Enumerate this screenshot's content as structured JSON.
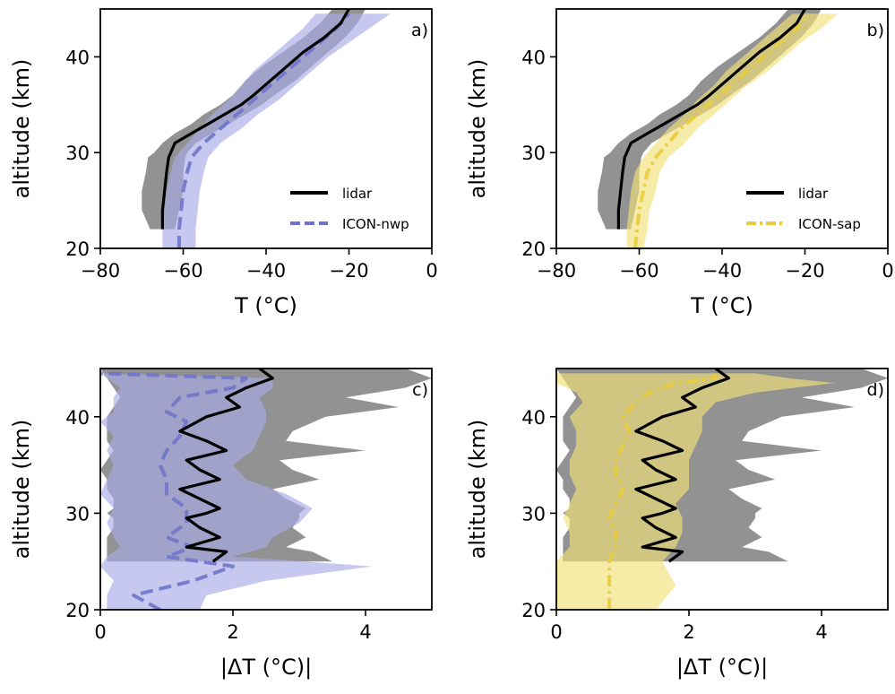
{
  "chart_data": [
    {
      "id": "a",
      "type": "line",
      "panel_label": "a)",
      "xlabel": "T (°C)",
      "ylabel": "altitude (km)",
      "xlim": [
        -80,
        0
      ],
      "ylim": [
        20,
        45
      ],
      "xticks": [
        -80,
        -60,
        -40,
        -20,
        0
      ],
      "xtick_labels": [
        "−80",
        "−60",
        "−40",
        "−20",
        "0"
      ],
      "yticks": [
        20,
        30,
        40
      ],
      "ytick_labels": [
        "20",
        "30",
        "40"
      ],
      "legend": "lower-right",
      "series": [
        {
          "name": "lidar",
          "color": "#000000",
          "band_color": "#7f7f7f",
          "style": "solid",
          "x": [
            -65,
            -65,
            -64.5,
            -64,
            -63.5,
            -63,
            -62,
            -58,
            -54,
            -50,
            -46,
            -43,
            -39,
            -35,
            -31,
            -26,
            -22,
            -20
          ],
          "y": [
            22,
            24,
            26,
            28,
            29.5,
            30,
            31,
            32,
            33,
            34,
            35,
            36,
            37.5,
            39,
            40.5,
            42,
            43.5,
            45
          ],
          "band_low": [
            -68,
            -70,
            -70,
            -69,
            -68.5,
            -67,
            -65,
            -62,
            -58,
            -55,
            -51,
            -48,
            -45,
            -41,
            -36,
            -31,
            -27,
            -24
          ],
          "band_high": [
            -62,
            -61,
            -60,
            -60,
            -59.5,
            -59,
            -57,
            -53,
            -49,
            -45,
            -41,
            -38,
            -33,
            -29,
            -25,
            -21,
            -18,
            -16
          ]
        },
        {
          "name": "ICON-nwp",
          "color": "#7074c9",
          "band_color": "#a7aae6",
          "style": "dashed",
          "x": [
            -61,
            -61,
            -60.5,
            -60,
            -59,
            -58,
            -55,
            -51,
            -47,
            -43,
            -39,
            -35,
            -31,
            -27,
            -23,
            -20
          ],
          "y": [
            20,
            22,
            24,
            26,
            28,
            29.5,
            31,
            32.5,
            34,
            35.5,
            37,
            38.5,
            40,
            41.5,
            43,
            44.5
          ],
          "band_low": [
            -65,
            -65,
            -64.5,
            -64,
            -63,
            -62,
            -59,
            -56,
            -53,
            -49,
            -46,
            -43,
            -39,
            -35,
            -31,
            -28
          ],
          "band_high": [
            -57,
            -57,
            -56.5,
            -56,
            -55,
            -54,
            -51,
            -46,
            -42,
            -37,
            -33,
            -29,
            -25,
            -20,
            -15,
            -10
          ]
        }
      ]
    },
    {
      "id": "b",
      "type": "line",
      "panel_label": "b)",
      "xlabel": "T (°C)",
      "ylabel": "altitude (km)",
      "xlim": [
        -80,
        0
      ],
      "ylim": [
        20,
        45
      ],
      "xticks": [
        -80,
        -60,
        -40,
        -20,
        0
      ],
      "xtick_labels": [
        "−80",
        "−60",
        "−40",
        "−20",
        "0"
      ],
      "yticks": [
        20,
        30,
        40
      ],
      "ytick_labels": [
        "20",
        "30",
        "40"
      ],
      "legend": "lower-right",
      "series": [
        {
          "name": "lidar",
          "color": "#000000",
          "band_color": "#7f7f7f",
          "style": "solid",
          "x": [
            -65,
            -65,
            -64.5,
            -64,
            -63.5,
            -63,
            -62,
            -58,
            -54,
            -50,
            -46,
            -43,
            -39,
            -35,
            -31,
            -26,
            -22,
            -20
          ],
          "y": [
            22,
            24,
            26,
            28,
            29.5,
            30,
            31,
            32,
            33,
            34,
            35,
            36,
            37.5,
            39,
            40.5,
            42,
            43.5,
            45
          ],
          "band_low": [
            -68,
            -70,
            -70,
            -69,
            -68.5,
            -67,
            -65,
            -62,
            -58,
            -55,
            -51,
            -48,
            -45,
            -41,
            -36,
            -31,
            -27,
            -24
          ],
          "band_high": [
            -62,
            -61,
            -60,
            -60,
            -59.5,
            -59,
            -57,
            -53,
            -49,
            -45,
            -41,
            -38,
            -33,
            -29,
            -25,
            -21,
            -18,
            -16
          ]
        },
        {
          "name": "ICON-sap",
          "color": "#e8cc3c",
          "band_color": "#f2e07a",
          "style": "dashdot",
          "x": [
            -61,
            -60.5,
            -60,
            -59,
            -58,
            -56,
            -53,
            -50,
            -46,
            -42,
            -38,
            -34,
            -30,
            -26,
            -22,
            -19
          ],
          "y": [
            20,
            22,
            24,
            26,
            28,
            29.5,
            31,
            32.5,
            34,
            35.5,
            37,
            38.5,
            40,
            41.5,
            43,
            44.5
          ],
          "band_low": [
            -63,
            -63,
            -62.5,
            -62,
            -61,
            -59,
            -56,
            -53,
            -49,
            -46,
            -42,
            -39,
            -35,
            -31,
            -27,
            -23
          ],
          "band_high": [
            -59,
            -58,
            -57.5,
            -56,
            -55,
            -53,
            -49,
            -46,
            -42,
            -38,
            -34,
            -29,
            -25,
            -21,
            -16,
            -12
          ]
        }
      ]
    },
    {
      "id": "c",
      "type": "line",
      "panel_label": "c)",
      "xlabel": "|ΔT (°C)|",
      "ylabel": "altitude (km)",
      "xlim": [
        0,
        5
      ],
      "ylim": [
        20,
        45
      ],
      "xticks": [
        0,
        2,
        4
      ],
      "xtick_labels": [
        "0",
        "2",
        "4"
      ],
      "yticks": [
        20,
        30,
        40
      ],
      "ytick_labels": [
        "20",
        "30",
        "40"
      ],
      "series": [
        {
          "name": "lidar",
          "color": "#000000",
          "band_color": "#7f7f7f",
          "style": "solid",
          "x": [
            1.7,
            1.9,
            1.3,
            1.8,
            1.5,
            1.3,
            1.6,
            1.8,
            1.5,
            1.2,
            1.8,
            1.5,
            1.3,
            1.9,
            1.6,
            1.2,
            1.6,
            2.1,
            1.9,
            2.2,
            2.6,
            2.4
          ],
          "y": [
            25,
            26,
            26.5,
            27.5,
            28.5,
            29.5,
            30,
            30.5,
            31.5,
            32.5,
            33.5,
            34.5,
            35.5,
            36.5,
            37.5,
            38.5,
            40,
            41,
            42,
            43,
            44,
            45
          ],
          "band_low": [
            0.1,
            0.1,
            0.1,
            0.1,
            0.2,
            0.2,
            0.1,
            0.2,
            0.2,
            0.1,
            0.1,
            0.0,
            0.1,
            0.2,
            0.1,
            0.1,
            0.1,
            0.2,
            0.3,
            0.2,
            0.1,
            0.0
          ],
          "band_high": [
            3.5,
            3.2,
            2.8,
            3.1,
            2.9,
            3.0,
            3.0,
            3.1,
            2.8,
            2.6,
            3.3,
            2.9,
            2.7,
            4.0,
            2.8,
            2.9,
            3.4,
            4.5,
            3.7,
            4.6,
            5.0,
            4.6
          ]
        },
        {
          "name": "ICON-nwp",
          "color": "#7074c9",
          "band_color": "#a7aae6",
          "style": "dashed",
          "x": [
            0.9,
            0.5,
            1.4,
            2.0,
            1.0,
            1.4,
            1.0,
            1.3,
            1.3,
            1.0,
            1.0,
            0.9,
            1.0,
            1.2,
            1.3,
            1.0,
            1.2,
            2.0,
            2.2,
            0.0
          ],
          "y": [
            20,
            21.5,
            23,
            24.5,
            25.5,
            26.5,
            27.5,
            29,
            30.5,
            32,
            33.5,
            35,
            36.5,
            38,
            39.5,
            40.5,
            42,
            43,
            44,
            44.5
          ],
          "band_low": [
            0.1,
            0.1,
            0.2,
            0.0,
            0.1,
            0.3,
            0.2,
            0.1,
            0.2,
            0.0,
            0.1,
            0.2,
            0.1,
            0.2,
            0.0,
            0.2,
            0.2,
            0.3,
            0.1,
            0.0
          ],
          "band_high": [
            1.5,
            1.6,
            2.5,
            4.1,
            2.0,
            2.5,
            2.6,
            3.0,
            3.2,
            2.8,
            2.2,
            2.0,
            2.3,
            2.4,
            2.5,
            2.5,
            2.4,
            2.6,
            2.6,
            0.0
          ]
        }
      ]
    },
    {
      "id": "d",
      "type": "line",
      "panel_label": "d)",
      "xlabel": "|ΔT (°C)|",
      "ylabel": "altitude (km)",
      "xlim": [
        0,
        5
      ],
      "ylim": [
        20,
        45
      ],
      "xticks": [
        0,
        2,
        4
      ],
      "xtick_labels": [
        "0",
        "2",
        "4"
      ],
      "yticks": [
        20,
        30,
        40
      ],
      "ytick_labels": [
        "20",
        "30",
        "40"
      ],
      "series": [
        {
          "name": "lidar",
          "color": "#000000",
          "band_color": "#7f7f7f",
          "style": "solid",
          "x": [
            1.7,
            1.9,
            1.3,
            1.8,
            1.5,
            1.3,
            1.6,
            1.8,
            1.5,
            1.2,
            1.8,
            1.5,
            1.3,
            1.9,
            1.6,
            1.2,
            1.6,
            2.1,
            1.9,
            2.2,
            2.6,
            2.4
          ],
          "y": [
            25,
            26,
            26.5,
            27.5,
            28.5,
            29.5,
            30,
            30.5,
            31.5,
            32.5,
            33.5,
            34.5,
            35.5,
            36.5,
            37.5,
            38.5,
            40,
            41,
            42,
            43,
            44,
            45
          ],
          "band_low": [
            0.1,
            0.1,
            0.1,
            0.1,
            0.2,
            0.2,
            0.1,
            0.2,
            0.2,
            0.1,
            0.1,
            0.0,
            0.1,
            0.2,
            0.1,
            0.1,
            0.1,
            0.2,
            0.3,
            0.2,
            0.1,
            0.0
          ],
          "band_high": [
            3.5,
            3.2,
            2.8,
            3.1,
            2.9,
            3.0,
            3.0,
            3.1,
            2.8,
            2.6,
            3.3,
            2.9,
            2.7,
            4.0,
            2.8,
            2.9,
            3.4,
            4.5,
            3.7,
            4.6,
            5.0,
            4.6
          ]
        },
        {
          "name": "ICON-sap",
          "color": "#e8cc3c",
          "band_color": "#f2e07a",
          "style": "dashdot",
          "x": [
            0.8,
            0.8,
            0.8,
            0.9,
            0.9,
            0.8,
            0.9,
            1.0,
            0.9,
            0.9,
            1.0,
            1.1,
            1.0,
            1.2,
            1.4,
            1.8,
            2.4,
            2.4
          ],
          "y": [
            20,
            22.5,
            25,
            26.5,
            28,
            29.5,
            31,
            32.5,
            34,
            35.5,
            37,
            38.5,
            40,
            41.5,
            42.5,
            43.5,
            44,
            44.5
          ],
          "band_low": [
            0.0,
            0.0,
            0.0,
            0.2,
            0.2,
            0.1,
            0.2,
            0.3,
            0.2,
            0.2,
            0.3,
            0.3,
            0.2,
            0.4,
            0.3,
            0.0,
            0.0,
            0.0
          ],
          "band_high": [
            1.5,
            1.8,
            1.6,
            1.8,
            1.9,
            1.9,
            1.8,
            2.0,
            2.0,
            2.0,
            2.1,
            2.2,
            2.2,
            2.4,
            3.0,
            4.2,
            3.5,
            3.0
          ]
        }
      ]
    }
  ]
}
